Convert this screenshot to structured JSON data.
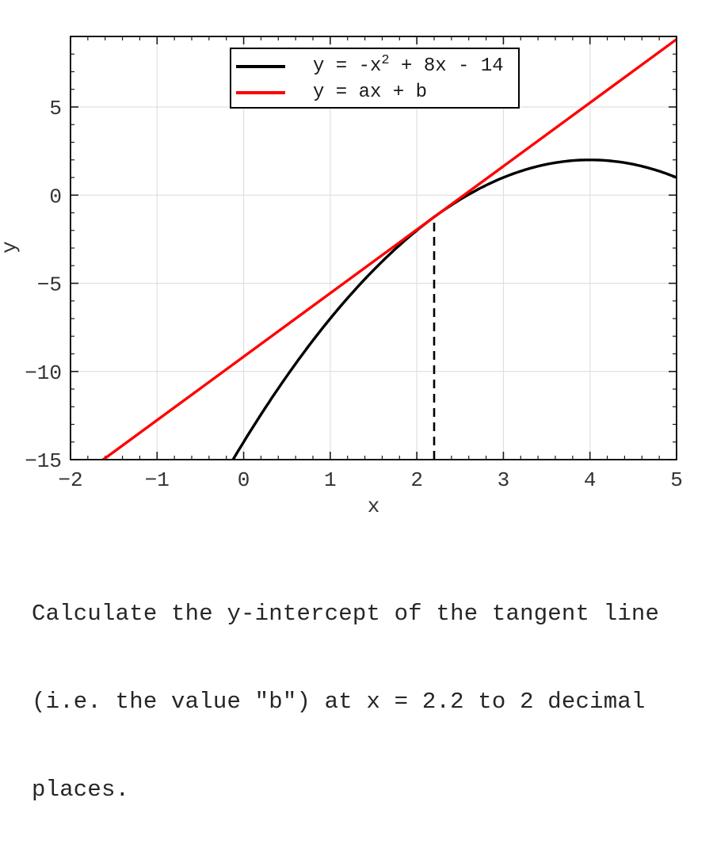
{
  "chart_data": {
    "type": "line",
    "title": "",
    "xlabel": "x",
    "ylabel": "y",
    "xlim": [
      -2,
      5
    ],
    "ylim": [
      -15,
      9
    ],
    "xticks": [
      -2,
      -1,
      0,
      1,
      2,
      3,
      4,
      5
    ],
    "yticks": [
      -15,
      -10,
      -5,
      0,
      5
    ],
    "x_minor_step": 0.2,
    "y_minor_step": 1,
    "grid": true,
    "grid_color": "#e0e0e0",
    "legend_position": "upper center",
    "series": [
      {
        "name": "parabola",
        "fn": "quadratic",
        "coeffs": [
          -1,
          8,
          -14
        ],
        "color": "#000000",
        "label_base": "y = -x",
        "label_sup": "2",
        "label_rest": " + 8x - 14"
      },
      {
        "name": "tangent-line",
        "fn": "linear",
        "slope": 3.6,
        "intercept": -9.16,
        "color": "#ff0000",
        "label_base": "y = ax + b",
        "label_sup": "",
        "label_rest": ""
      },
      {
        "name": "tangent-x-marker",
        "fn": "vline",
        "x": 2.2,
        "y_from": -15,
        "y_to": -1.24,
        "dashed": true,
        "color": "#000000"
      }
    ]
  },
  "question": {
    "lines": [
      "Calculate the y-intercept of the tangent line",
      "(i.e. the value \"b\") at x = 2.2 to 2 decimal",
      "places."
    ]
  }
}
